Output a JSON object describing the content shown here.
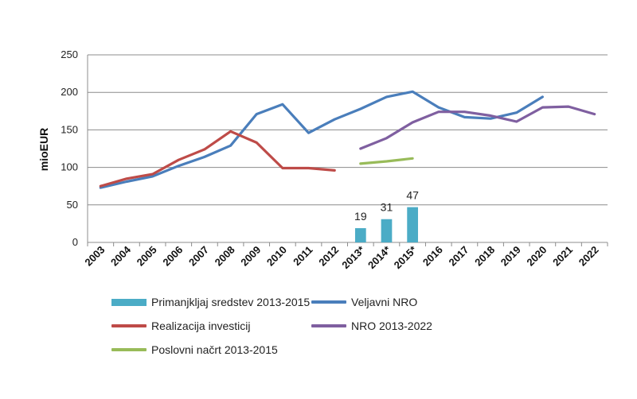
{
  "chart_data": {
    "type": "line",
    "ylabel": "mioEUR",
    "ylim": [
      0,
      250
    ],
    "yticks": [
      "0",
      "50",
      "100",
      "150",
      "200",
      "250"
    ],
    "categories": [
      "2003",
      "2004",
      "2005",
      "2006",
      "2007",
      "2008",
      "2009",
      "2010",
      "2011",
      "2012",
      "2013*",
      "2014*",
      "2015*",
      "2016",
      "2017",
      "2018",
      "2019",
      "2020",
      "2021",
      "2022"
    ],
    "grid": true,
    "legend_position": "bottom",
    "series": [
      {
        "name": "Primanjkljaj sredstev 2013-2015",
        "type": "bar",
        "color": "#4bacc6",
        "values": [
          null,
          null,
          null,
          null,
          null,
          null,
          null,
          null,
          null,
          null,
          19,
          31,
          47,
          null,
          null,
          null,
          null,
          null,
          null,
          null
        ],
        "data_labels": [
          "",
          "",
          "",
          "",
          "",
          "",
          "",
          "",
          "",
          "",
          "19",
          "31",
          "47",
          "",
          "",
          "",
          "",
          "",
          "",
          ""
        ]
      },
      {
        "name": "Veljavni NRO",
        "type": "line",
        "color": "#4a7ebb",
        "values": [
          73,
          81,
          88,
          102,
          114,
          129,
          171,
          184,
          146,
          164,
          178,
          194,
          201,
          180,
          167,
          165,
          173,
          194,
          null,
          null
        ]
      },
      {
        "name": "Realizacija investicij",
        "type": "line",
        "color": "#be4b48",
        "values": [
          75,
          85,
          91,
          110,
          124,
          148,
          133,
          99,
          99,
          96,
          null,
          null,
          null,
          null,
          null,
          null,
          null,
          null,
          null,
          null
        ]
      },
      {
        "name": "NRO 2013-2022",
        "type": "line",
        "color": "#7f5fa0",
        "values": [
          null,
          null,
          null,
          null,
          null,
          null,
          null,
          null,
          null,
          null,
          125,
          139,
          160,
          174,
          174,
          169,
          161,
          180,
          181,
          171
        ]
      },
      {
        "name": "Poslovni načrt 2013-2015",
        "type": "line",
        "color": "#98bb59",
        "values": [
          null,
          null,
          null,
          null,
          null,
          null,
          null,
          null,
          null,
          null,
          105,
          108,
          112,
          null,
          null,
          null,
          null,
          null,
          null,
          null
        ]
      }
    ]
  }
}
